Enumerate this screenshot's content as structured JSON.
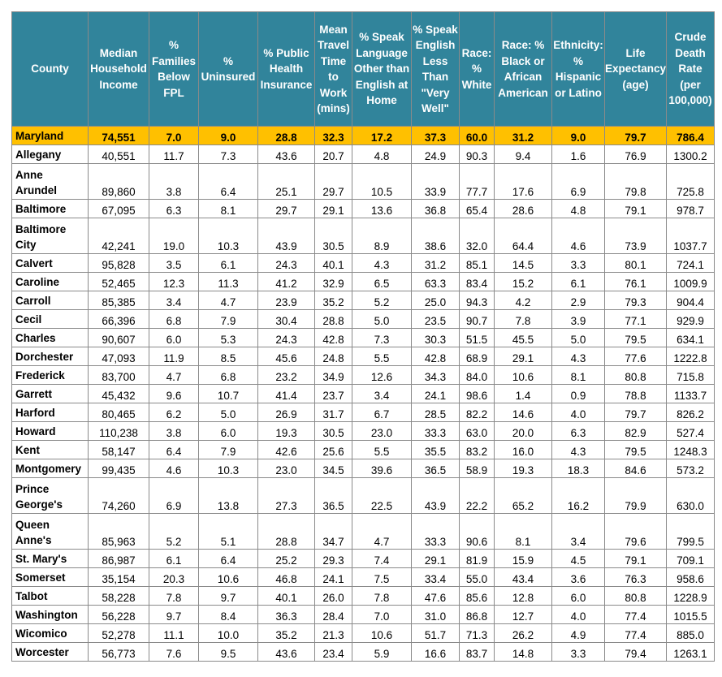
{
  "headers": [
    "County",
    "Median Household Income",
    "% Families Below FPL",
    "% Uninsured",
    "% Public Health Insurance",
    "Mean Travel Time to Work (mins)",
    "% Speak Language Other than English at Home",
    "% Speak English Less Than \"Very Well\"",
    "Race: % White",
    "Race: % Black or African American",
    "Ethnicity: % Hispanic or Latino",
    "Life Expectancy (age)",
    "Crude Death Rate (per 100,000)"
  ],
  "state_row": [
    "Maryland",
    "74,551",
    "7.0",
    "9.0",
    "28.8",
    "32.3",
    "17.2",
    "37.3",
    "60.0",
    "31.2",
    "9.0",
    "79.7",
    "786.4"
  ],
  "rows": [
    [
      "Allegany",
      "40,551",
      "11.7",
      "7.3",
      "43.6",
      "20.7",
      "4.8",
      "24.9",
      "90.3",
      "9.4",
      "1.6",
      "76.9",
      "1300.2"
    ],
    [
      "Anne Arundel",
      "89,860",
      "3.8",
      "6.4",
      "25.1",
      "29.7",
      "10.5",
      "33.9",
      "77.7",
      "17.6",
      "6.9",
      "79.8",
      "725.8"
    ],
    [
      "Baltimore",
      "67,095",
      "6.3",
      "8.1",
      "29.7",
      "29.1",
      "13.6",
      "36.8",
      "65.4",
      "28.6",
      "4.8",
      "79.1",
      "978.7"
    ],
    [
      "Baltimore City",
      "42,241",
      "19.0",
      "10.3",
      "43.9",
      "30.5",
      "8.9",
      "38.6",
      "32.0",
      "64.4",
      "4.6",
      "73.9",
      "1037.7"
    ],
    [
      "Calvert",
      "95,828",
      "3.5",
      "6.1",
      "24.3",
      "40.1",
      "4.3",
      "31.2",
      "85.1",
      "14.5",
      "3.3",
      "80.1",
      "724.1"
    ],
    [
      "Caroline",
      "52,465",
      "12.3",
      "11.3",
      "41.2",
      "32.9",
      "6.5",
      "63.3",
      "83.4",
      "15.2",
      "6.1",
      "76.1",
      "1009.9"
    ],
    [
      "Carroll",
      "85,385",
      "3.4",
      "4.7",
      "23.9",
      "35.2",
      "5.2",
      "25.0",
      "94.3",
      "4.2",
      "2.9",
      "79.3",
      "904.4"
    ],
    [
      "Cecil",
      "66,396",
      "6.8",
      "7.9",
      "30.4",
      "28.8",
      "5.0",
      "23.5",
      "90.7",
      "7.8",
      "3.9",
      "77.1",
      "929.9"
    ],
    [
      "Charles",
      "90,607",
      "6.0",
      "5.3",
      "24.3",
      "42.8",
      "7.3",
      "30.3",
      "51.5",
      "45.5",
      "5.0",
      "79.5",
      "634.1"
    ],
    [
      "Dorchester",
      "47,093",
      "11.9",
      "8.5",
      "45.6",
      "24.8",
      "5.5",
      "42.8",
      "68.9",
      "29.1",
      "4.3",
      "77.6",
      "1222.8"
    ],
    [
      "Frederick",
      "83,700",
      "4.7",
      "6.8",
      "23.2",
      "34.9",
      "12.6",
      "34.3",
      "84.0",
      "10.6",
      "8.1",
      "80.8",
      "715.8"
    ],
    [
      "Garrett",
      "45,432",
      "9.6",
      "10.7",
      "41.4",
      "23.7",
      "3.4",
      "24.1",
      "98.6",
      "1.4",
      "0.9",
      "78.8",
      "1133.7"
    ],
    [
      "Harford",
      "80,465",
      "6.2",
      "5.0",
      "26.9",
      "31.7",
      "6.7",
      "28.5",
      "82.2",
      "14.6",
      "4.0",
      "79.7",
      "826.2"
    ],
    [
      "Howard",
      "110,238",
      "3.8",
      "6.0",
      "19.3",
      "30.5",
      "23.0",
      "33.3",
      "63.0",
      "20.0",
      "6.3",
      "82.9",
      "527.4"
    ],
    [
      "Kent",
      "58,147",
      "6.4",
      "7.9",
      "42.6",
      "25.6",
      "5.5",
      "35.5",
      "83.2",
      "16.0",
      "4.3",
      "79.5",
      "1248.3"
    ],
    [
      "Montgomery",
      "99,435",
      "4.6",
      "10.3",
      "23.0",
      "34.5",
      "39.6",
      "36.5",
      "58.9",
      "19.3",
      "18.3",
      "84.6",
      "573.2"
    ],
    [
      "Prince George's",
      "74,260",
      "6.9",
      "13.8",
      "27.3",
      "36.5",
      "22.5",
      "43.9",
      "22.2",
      "65.2",
      "16.2",
      "79.9",
      "630.0"
    ],
    [
      "Queen Anne's",
      "85,963",
      "5.2",
      "5.1",
      "28.8",
      "34.7",
      "4.7",
      "33.3",
      "90.6",
      "8.1",
      "3.4",
      "79.6",
      "799.5"
    ],
    [
      "St. Mary's",
      "86,987",
      "6.1",
      "6.4",
      "25.2",
      "29.3",
      "7.4",
      "29.1",
      "81.9",
      "15.9",
      "4.5",
      "79.1",
      "709.1"
    ],
    [
      "Somerset",
      "35,154",
      "20.3",
      "10.6",
      "46.8",
      "24.1",
      "7.5",
      "33.4",
      "55.0",
      "43.4",
      "3.6",
      "76.3",
      "958.6"
    ],
    [
      "Talbot",
      "58,228",
      "7.8",
      "9.7",
      "40.1",
      "26.0",
      "7.8",
      "47.6",
      "85.6",
      "12.8",
      "6.0",
      "80.8",
      "1228.9"
    ],
    [
      "Washington",
      "56,228",
      "9.7",
      "8.4",
      "36.3",
      "28.4",
      "7.0",
      "31.0",
      "86.8",
      "12.7",
      "4.0",
      "77.4",
      "1015.5"
    ],
    [
      "Wicomico",
      "52,278",
      "11.1",
      "10.0",
      "35.2",
      "21.3",
      "10.6",
      "51.7",
      "71.3",
      "26.2",
      "4.9",
      "77.4",
      "885.0"
    ],
    [
      "Worcester",
      "56,773",
      "7.6",
      "9.5",
      "43.6",
      "23.4",
      "5.9",
      "16.6",
      "83.7",
      "14.8",
      "3.3",
      "79.4",
      "1263.1"
    ]
  ],
  "colors": {
    "header_bg": "#31849b",
    "header_text": "#ffffff",
    "state_row_bg": "#ffc000",
    "border": "#8a8a8a"
  }
}
